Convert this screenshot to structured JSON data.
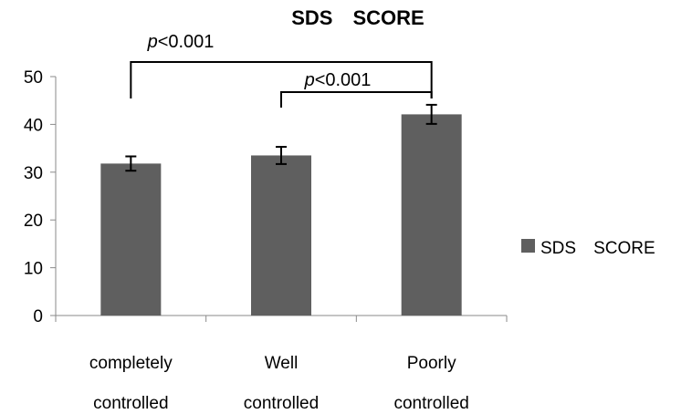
{
  "chart_data": {
    "type": "bar",
    "title": "SDS SCORE",
    "categories": [
      [
        "completely",
        "controlled"
      ],
      [
        "Well",
        "controlled"
      ],
      [
        "Poorly",
        "controlled"
      ]
    ],
    "series": [
      {
        "name": "SDS SCORE",
        "values": [
          31.8,
          33.5,
          42.1
        ],
        "errors": [
          1.5,
          1.8,
          2.0
        ],
        "color": "#5f5f5f"
      }
    ],
    "ylim": [
      0,
      50
    ],
    "yticks": [
      0,
      10,
      20,
      30,
      40,
      50
    ],
    "grid": false,
    "legend": "right",
    "annotations": [
      {
        "label": "<0.001",
        "italic_prefix": "p",
        "from": 0,
        "to": 2
      },
      {
        "label": "<0.001",
        "italic_prefix": "p",
        "from": 1,
        "to": 2
      }
    ]
  }
}
